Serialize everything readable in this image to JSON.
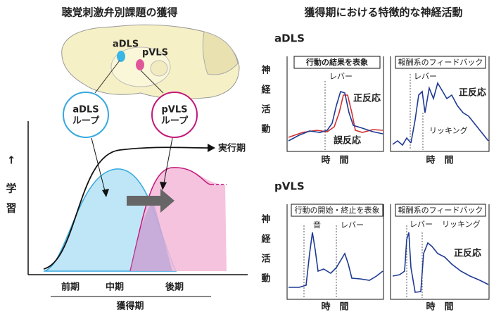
{
  "left": {
    "title": "聴覚刺激弁別課題の獲得",
    "brain_labels": [
      "aDLS",
      "pVLS"
    ],
    "loops": [
      {
        "line1": "aDLS",
        "line2": "ループ"
      },
      {
        "line1": "pVLS",
        "line2": "ループ"
      }
    ],
    "phase_label": "実行期",
    "y_axis_label": [
      "↑",
      "学",
      "習"
    ],
    "x_labels": [
      "前期",
      "中期",
      "後期"
    ],
    "x_axis_title": "獲得期"
  },
  "right": {
    "title": "獲得期における特徴的な神経活動",
    "sections": [
      {
        "name": "aDLS",
        "y_label": [
          "神",
          "経",
          "活",
          "動"
        ],
        "panels": [
          {
            "title": "行動の結果を表象",
            "x_label": "時　間",
            "annotations": [
              "レバー",
              "正反応",
              "誤反応"
            ]
          },
          {
            "title": "報酬系のフィードバック",
            "x_label": "時　間",
            "annotations": [
              "レバー",
              "リッキング",
              "正反応"
            ]
          }
        ]
      },
      {
        "name": "pVLS",
        "y_label": [
          "神",
          "経",
          "活",
          "動"
        ],
        "panels": [
          {
            "title": "行動の開始・終止を表象",
            "x_label": "時　間",
            "annotations": [
              "音",
              "レバー"
            ]
          },
          {
            "title": "報酬系のフィードバック",
            "x_label": "時　間",
            "annotations": [
              "レバー",
              "リッキング",
              "正反応"
            ]
          }
        ]
      }
    ]
  }
}
